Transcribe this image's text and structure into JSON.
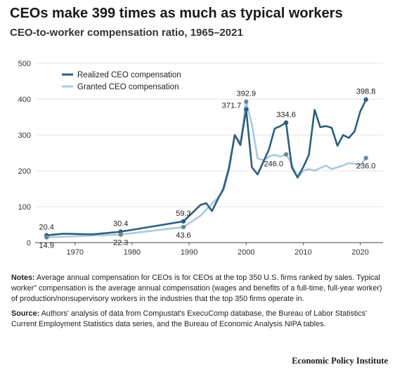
{
  "header": {
    "title": "CEOs make 399 times as much as typical workers",
    "subtitle": "CEO-to-worker compensation ratio, 1965–2021"
  },
  "chart_data": {
    "type": "line",
    "title": "CEOs make 399 times as much as typical workers",
    "subtitle": "CEO-to-worker compensation ratio, 1965–2021",
    "xlabel": "",
    "ylabel": "",
    "xlim": [
      1963,
      2024
    ],
    "ylim": [
      0,
      500
    ],
    "x_ticks": [
      "1970",
      "1980",
      "1990",
      "2000",
      "2010",
      "2020"
    ],
    "y_ticks": [
      "0",
      "100",
      "200",
      "300",
      "400",
      "500"
    ],
    "grid": "horizontal",
    "legend_position": "top-left",
    "series": [
      {
        "name": "Realized CEO compensation",
        "color": "#2e5f7a",
        "x": [
          1965,
          1968,
          1973,
          1978,
          1989,
          1992,
          1993,
          1994,
          1995,
          1996,
          1997,
          1998,
          1999,
          2000,
          2001,
          2002,
          2003,
          2004,
          2005,
          2006,
          2007,
          2008,
          2009,
          2010,
          2011,
          2012,
          2013,
          2014,
          2015,
          2016,
          2017,
          2018,
          2019,
          2020,
          2021
        ],
        "y": [
          20.4,
          25,
          23,
          30.4,
          59.3,
          105,
          110,
          88,
          120,
          150,
          210,
          300,
          272,
          371.7,
          210,
          190,
          225,
          260,
          318,
          325,
          334.6,
          210,
          182,
          210,
          245,
          370,
          322,
          325,
          320,
          270,
          300,
          292,
          310,
          365,
          398.8
        ]
      },
      {
        "name": "Granted CEO compensation",
        "color": "#a9cbe0",
        "x": [
          1965,
          1978,
          1989,
          1992,
          1995,
          1996,
          1997,
          1998,
          1999,
          2000,
          2001,
          2002,
          2003,
          2004,
          2005,
          2006,
          2007,
          2008,
          2009,
          2010,
          2011,
          2012,
          2013,
          2014,
          2015,
          2016,
          2017,
          2018,
          2019,
          2020,
          2021
        ],
        "y": [
          14.9,
          22.3,
          43.6,
          75,
          125,
          145,
          200,
          300,
          280,
          392.9,
          330,
          235,
          230,
          240,
          245,
          240,
          246,
          220,
          180,
          200,
          205,
          200,
          208,
          215,
          205,
          210,
          215,
          222,
          220,
          215,
          236
        ]
      }
    ],
    "annotations": [
      {
        "series": 0,
        "year": 1965,
        "value": 20.4,
        "text": "20.4",
        "pos": "above"
      },
      {
        "series": 1,
        "year": 1965,
        "value": 14.9,
        "text": "14.9",
        "pos": "below"
      },
      {
        "series": 0,
        "year": 1978,
        "value": 30.4,
        "text": "30.4",
        "pos": "above"
      },
      {
        "series": 1,
        "year": 1978,
        "value": 22.3,
        "text": "22.3",
        "pos": "below"
      },
      {
        "series": 0,
        "year": 1989,
        "value": 59.3,
        "text": "59.3",
        "pos": "above"
      },
      {
        "series": 1,
        "year": 1989,
        "value": 43.6,
        "text": "43.6",
        "pos": "below"
      },
      {
        "series": 0,
        "year": 2000,
        "value": 371.7,
        "text": "371.7",
        "pos": "left"
      },
      {
        "series": 1,
        "year": 2000,
        "value": 392.9,
        "text": "392.9",
        "pos": "above"
      },
      {
        "series": 0,
        "year": 2007,
        "value": 334.6,
        "text": "334.6",
        "pos": "above"
      },
      {
        "series": 1,
        "year": 2007,
        "value": 246.0,
        "text": "246.0",
        "pos": "below-left"
      },
      {
        "series": 0,
        "year": 2021,
        "value": 398.8,
        "text": "398.8",
        "pos": "above"
      },
      {
        "series": 1,
        "year": 2021,
        "value": 236.0,
        "text": "236.0",
        "pos": "below"
      }
    ]
  },
  "notes": {
    "notes_label": "Notes:",
    "notes_text": " Average annual compensation for CEOs is for CEOs at the top 350 U.S. firms ranked by sales. Typical worker” compensation is the average annual compensation (wages and benefits of a full-time, full-year worker) of production/nonsupervisory workers in the industries that the top 350 firms operate in.",
    "source_label": "Source:",
    "source_text": " Authors' analysis of data from Compustat's ExecuComp database, the Bureau of Labor Statistics' Current Employment Statistics data series, and the Bureau of Economic Analysis NIPA tables."
  },
  "footer": {
    "publisher": "Economic Policy Institute"
  }
}
